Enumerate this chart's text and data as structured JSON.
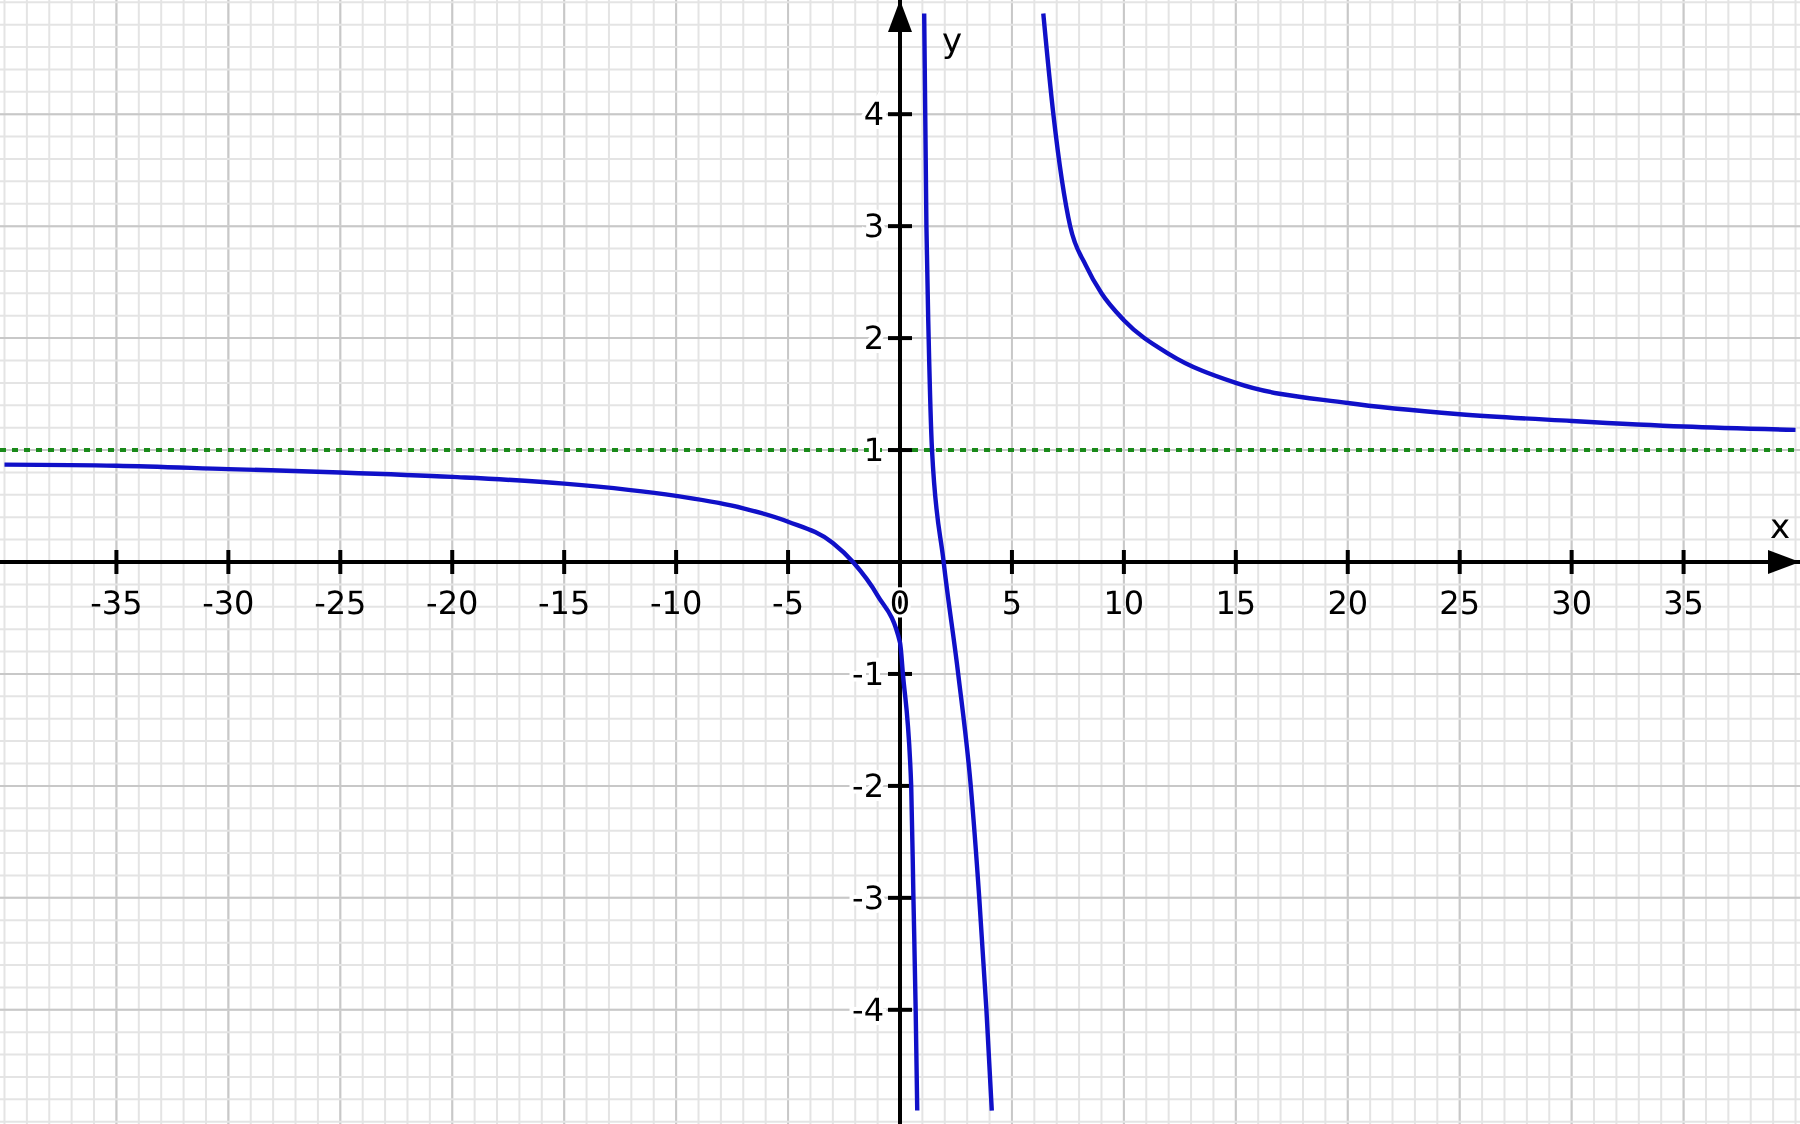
{
  "chart_data": {
    "type": "line",
    "xlabel": "x",
    "ylabel": "y",
    "xlim": [
      -40.2,
      40.2
    ],
    "ylim": [
      -5.02,
      5.02
    ],
    "xticks": [
      -35,
      -30,
      -25,
      -20,
      -15,
      -10,
      -5,
      0,
      5,
      10,
      15,
      20,
      25,
      30,
      35
    ],
    "yticks": [
      -4,
      -3,
      -2,
      -1,
      1,
      2,
      3,
      4
    ],
    "grid": true,
    "series": [
      {
        "color": "#1010c8",
        "x": [
          -40,
          -35,
          -30,
          -25,
          -20,
          -15,
          -10,
          -7,
          -5,
          -3,
          -2.1,
          -1,
          0,
          0.13,
          0.5,
          0.6,
          0.7,
          0.77
        ],
        "values": [
          0.87,
          0.86,
          0.83,
          0.8,
          0.76,
          0.7,
          0.59,
          0.48,
          0.36,
          0.17,
          0,
          -0.3,
          -0.72,
          -1,
          -2,
          -3,
          -4,
          -4.9
        ]
      },
      {
        "color": "#1010c8",
        "x": [
          1.08,
          1.18,
          1.28,
          1.43,
          1.95,
          2.6,
          3.16,
          3.54,
          3.86,
          4.1
        ],
        "values": [
          4.9,
          3,
          2,
          1,
          0,
          -1,
          -2,
          -3,
          -4,
          -4.9
        ]
      },
      {
        "color": "#1010c8",
        "x": [
          6.4,
          6.85,
          7.6,
          8.3,
          9,
          10,
          12,
          15,
          20,
          25,
          30,
          35,
          40
        ],
        "values": [
          4.9,
          4,
          3,
          2.65,
          2.4,
          2.16,
          1.86,
          1.6,
          1.42,
          1.32,
          1.26,
          1.21,
          1.18
        ]
      }
    ],
    "ref_lines": [
      {
        "axis": "y",
        "value": 1,
        "color": "#1a8a1a",
        "line_style": "dotted"
      }
    ]
  }
}
